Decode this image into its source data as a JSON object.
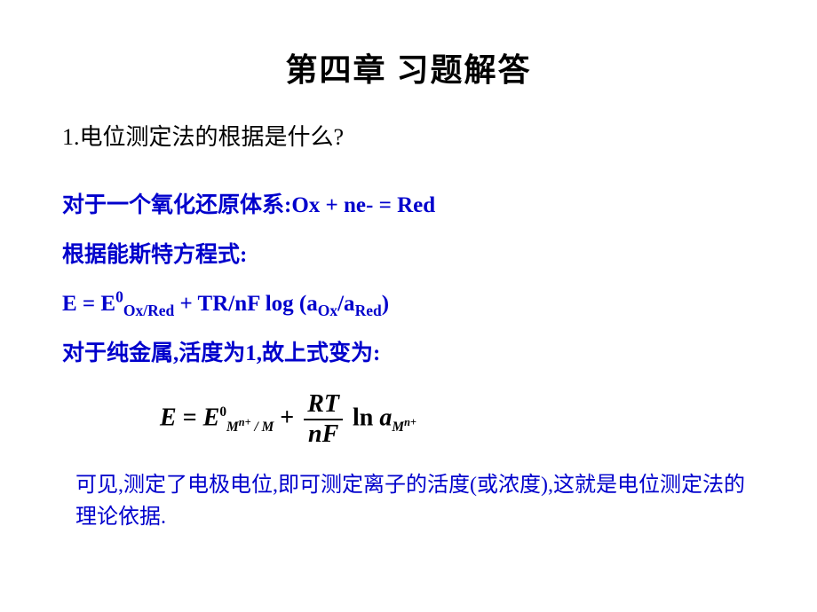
{
  "title": "第四章 习题解答",
  "question": "1.电位测定法的根据是什么?",
  "answer": {
    "line1": "对于一个氧化还原体系:Ox  + ne- = Red",
    "line2": "根据能斯特方程式:",
    "line3_prefix": "E = E",
    "line3_sup0": "0",
    "line3_sub1": "Ox/Red",
    "line3_mid": " + TR/nF log (a",
    "line3_sub2": "Ox",
    "line3_slash": "/a",
    "line3_sub3": "Red",
    "line3_end": ")",
    "line4": "对于纯金属,活度为1,故上式变为:"
  },
  "formula": {
    "E": "E",
    "eq": " = ",
    "E2": "E",
    "sup0": "0",
    "sub_Mn_M": "M",
    "sub_nplus": "n+",
    "sub_slash_M": " / M",
    "plus": " + ",
    "RT": "RT",
    "nF": "nF",
    "ln": " ln ",
    "a": "a",
    "sub_M": "M",
    "sub_nplus2": "n+"
  },
  "conclusion": "可见,测定了电极电位,即可测定离子的活度(或浓度),这就是电位测定法的理论依据.",
  "colors": {
    "title": "#000000",
    "question": "#000000",
    "answer": "#0000cc",
    "formula": "#000000",
    "background": "#ffffff"
  },
  "fontsize": {
    "title": 36,
    "question": 26,
    "answer": 25,
    "formula": 28,
    "conclusion": 24
  }
}
